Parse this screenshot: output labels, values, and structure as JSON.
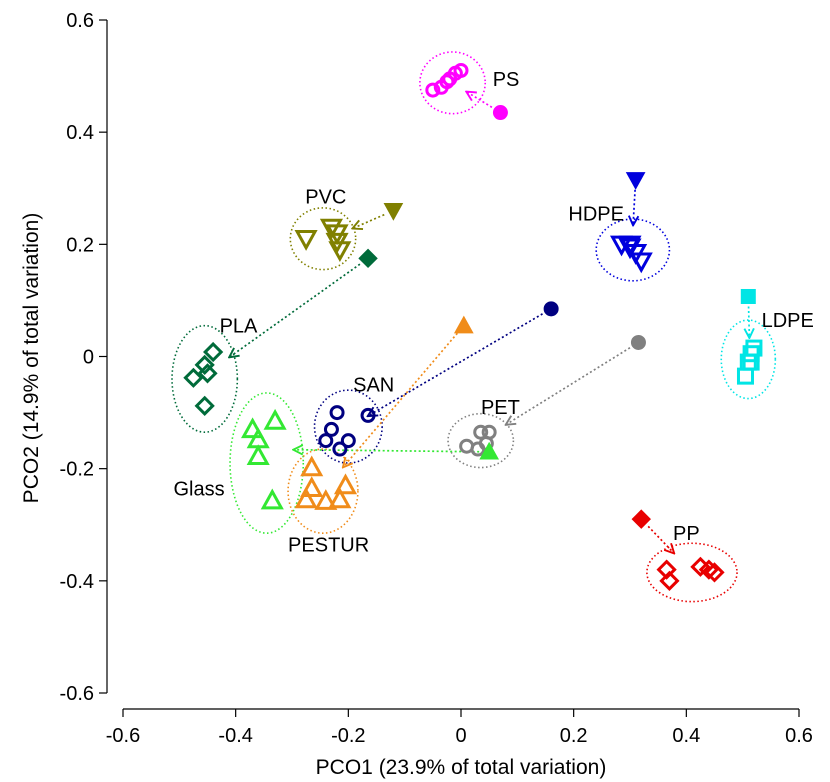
{
  "chart_data": {
    "type": "scatter",
    "title": "",
    "xlabel": "PCO1 (23.9% of total variation)",
    "ylabel": "PCO2 (14.9% of total variation)",
    "xlim": [
      -0.6,
      0.6
    ],
    "ylim": [
      -0.6,
      0.6
    ],
    "x_ticks": [
      -0.6,
      -0.4,
      -0.2,
      0,
      0.2,
      0.4,
      0.6
    ],
    "x_tick_labels": [
      "-0.6",
      "-0.4",
      "-0.2",
      "0",
      "0.2",
      "0.4",
      "0.6"
    ],
    "y_ticks": [
      0.6,
      0.4,
      0.2,
      0,
      -0.2,
      -0.4,
      -0.6
    ],
    "y_tick_labels": [
      "0.6",
      "0.4",
      "0.2",
      "0",
      "-0.2",
      "-0.4",
      "-0.6"
    ],
    "groups": [
      {
        "name": "PS",
        "label": "PS",
        "label_at": [
          0.08,
          0.495
        ],
        "color": "#ff00ff",
        "marker": "circle",
        "initial": {
          "x": 0.07,
          "y": 0.435,
          "marker": "circle"
        },
        "points": [
          [
            -0.05,
            0.475
          ],
          [
            -0.035,
            0.48
          ],
          [
            -0.025,
            0.49
          ],
          [
            -0.01,
            0.505
          ],
          [
            0.0,
            0.51
          ],
          [
            -0.02,
            0.495
          ]
        ],
        "ellipse": {
          "cx": -0.015,
          "cy": 0.488,
          "rx": 0.058,
          "ry": 0.055
        }
      },
      {
        "name": "PVC",
        "label": "PVC",
        "label_at": [
          -0.24,
          0.285
        ],
        "color": "#808000",
        "marker": "triangle-down",
        "initial": {
          "x": -0.12,
          "y": 0.26,
          "marker": "triangle-down-filled"
        },
        "points": [
          [
            -0.275,
            0.21
          ],
          [
            -0.23,
            0.23
          ],
          [
            -0.22,
            0.22
          ],
          [
            -0.215,
            0.19
          ],
          [
            -0.22,
            0.205
          ]
        ],
        "ellipse": {
          "cx": -0.245,
          "cy": 0.21,
          "rx": 0.058,
          "ry": 0.055
        }
      },
      {
        "name": "HDPE",
        "label": "HDPE",
        "label_at": [
          0.24,
          0.255
        ],
        "color": "#0000dd",
        "marker": "triangle-down",
        "initial": {
          "x": 0.31,
          "y": 0.315,
          "marker": "triangle-down-filled"
        },
        "points": [
          [
            0.285,
            0.2
          ],
          [
            0.3,
            0.195
          ],
          [
            0.31,
            0.185
          ],
          [
            0.32,
            0.17
          ],
          [
            0.3,
            0.2
          ]
        ],
        "ellipse": {
          "cx": 0.305,
          "cy": 0.19,
          "rx": 0.065,
          "ry": 0.055
        }
      },
      {
        "name": "PLA",
        "label": "PLA",
        "label_at": [
          -0.395,
          0.055
        ],
        "color": "#006b3a",
        "marker": "diamond",
        "initial": {
          "x": -0.165,
          "y": 0.175,
          "marker": "diamond-filled"
        },
        "points": [
          [
            -0.44,
            0.008
          ],
          [
            -0.455,
            -0.015
          ],
          [
            -0.45,
            -0.03
          ],
          [
            -0.475,
            -0.038
          ],
          [
            -0.455,
            -0.088
          ]
        ],
        "ellipse": {
          "cx": -0.455,
          "cy": -0.04,
          "rx": 0.058,
          "ry": 0.095
        }
      },
      {
        "name": "LDPE",
        "label": "LDPE",
        "label_at": [
          0.58,
          0.065
        ],
        "color": "#00e5e5",
        "marker": "square",
        "initial": {
          "x": 0.51,
          "y": 0.107,
          "marker": "square-filled"
        },
        "points": [
          [
            0.52,
            0.015
          ],
          [
            0.51,
            -0.01
          ],
          [
            0.515,
            0.005
          ],
          [
            0.505,
            -0.035
          ],
          [
            0.515,
            -0.01
          ]
        ],
        "ellipse": {
          "cx": 0.51,
          "cy": -0.005,
          "rx": 0.048,
          "ry": 0.07
        }
      },
      {
        "name": "SAN",
        "label": "SAN",
        "label_at": [
          -0.155,
          -0.05
        ],
        "color": "#000080",
        "marker": "circle",
        "initial": {
          "x": 0.16,
          "y": 0.085,
          "marker": "circle-filled"
        },
        "points": [
          [
            -0.22,
            -0.1
          ],
          [
            -0.165,
            -0.105
          ],
          [
            -0.24,
            -0.15
          ],
          [
            -0.2,
            -0.15
          ],
          [
            -0.215,
            -0.165
          ],
          [
            -0.23,
            -0.13
          ]
        ],
        "ellipse": {
          "cx": -0.2,
          "cy": -0.125,
          "rx": 0.06,
          "ry": 0.065
        }
      },
      {
        "name": "PET",
        "label": "PET",
        "label_at": [
          0.07,
          -0.09
        ],
        "color": "#808080",
        "marker": "circle",
        "initial": {
          "x": 0.315,
          "y": 0.025,
          "marker": "circle-filled"
        },
        "points": [
          [
            0.01,
            -0.16
          ],
          [
            0.035,
            -0.135
          ],
          [
            0.05,
            -0.135
          ],
          [
            0.045,
            -0.155
          ],
          [
            0.03,
            -0.165
          ]
        ],
        "ellipse": {
          "cx": 0.035,
          "cy": -0.15,
          "rx": 0.058,
          "ry": 0.048
        }
      },
      {
        "name": "Glass",
        "label": "Glass",
        "label_at": [
          -0.465,
          -0.235
        ],
        "color": "#33e833",
        "marker": "triangle-up",
        "initial": {
          "x": 0.05,
          "y": -0.17,
          "marker": "triangle-up-filled"
        },
        "points": [
          [
            -0.37,
            -0.13
          ],
          [
            -0.33,
            -0.115
          ],
          [
            -0.36,
            -0.148
          ],
          [
            -0.36,
            -0.178
          ],
          [
            -0.335,
            -0.257
          ]
        ],
        "ellipse": {
          "cx": -0.345,
          "cy": -0.19,
          "rx": 0.065,
          "ry": 0.125
        }
      },
      {
        "name": "PESTUR",
        "label": "PESTUR",
        "label_at": [
          -0.235,
          -0.335
        ],
        "color": "#f08c1a",
        "marker": "triangle-up",
        "initial": {
          "x": 0.005,
          "y": 0.055,
          "marker": "triangle-up-filled"
        },
        "points": [
          [
            -0.265,
            -0.198
          ],
          [
            -0.265,
            -0.235
          ],
          [
            -0.275,
            -0.255
          ],
          [
            -0.24,
            -0.258
          ],
          [
            -0.215,
            -0.255
          ],
          [
            -0.205,
            -0.23
          ]
        ],
        "ellipse": {
          "cx": -0.245,
          "cy": -0.24,
          "rx": 0.062,
          "ry": 0.075
        }
      },
      {
        "name": "PP",
        "label": "PP",
        "label_at": [
          0.4,
          -0.315
        ],
        "color": "#e80000",
        "marker": "diamond",
        "initial": {
          "x": 0.32,
          "y": -0.29,
          "marker": "diamond-filled"
        },
        "points": [
          [
            0.365,
            -0.38
          ],
          [
            0.37,
            -0.4
          ],
          [
            0.425,
            -0.375
          ],
          [
            0.44,
            -0.38
          ],
          [
            0.45,
            -0.385
          ]
        ],
        "ellipse": {
          "cx": 0.41,
          "cy": -0.385,
          "rx": 0.08,
          "ry": 0.052
        }
      }
    ]
  }
}
